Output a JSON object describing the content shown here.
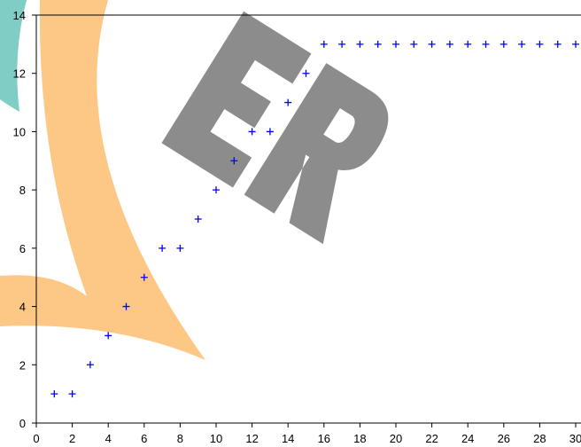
{
  "chart_data": {
    "type": "scatter",
    "series": [
      {
        "color": "#0000ff",
        "x": [
          1,
          2,
          3,
          4,
          5,
          6,
          7,
          8,
          9,
          10,
          11,
          12,
          13,
          14,
          15,
          16,
          17,
          18,
          19,
          20,
          21,
          22,
          23,
          24,
          25,
          26,
          27,
          28,
          29,
          30
        ],
        "values": [
          1,
          1,
          2,
          3,
          4,
          5,
          6,
          6,
          7,
          8,
          9,
          10,
          10,
          11,
          12,
          13,
          13,
          13,
          13,
          13,
          13,
          13,
          13,
          13,
          13,
          13,
          13,
          13,
          13,
          13
        ]
      }
    ],
    "xlim": [
      0,
      30
    ],
    "xticks": [
      0,
      2,
      4,
      6,
      8,
      10,
      12,
      14,
      16,
      18,
      20,
      22,
      24,
      26,
      28,
      30
    ],
    "ylim": [
      0,
      14
    ],
    "yticks": [
      0,
      2,
      4,
      6,
      8,
      10,
      12,
      14
    ]
  }
}
